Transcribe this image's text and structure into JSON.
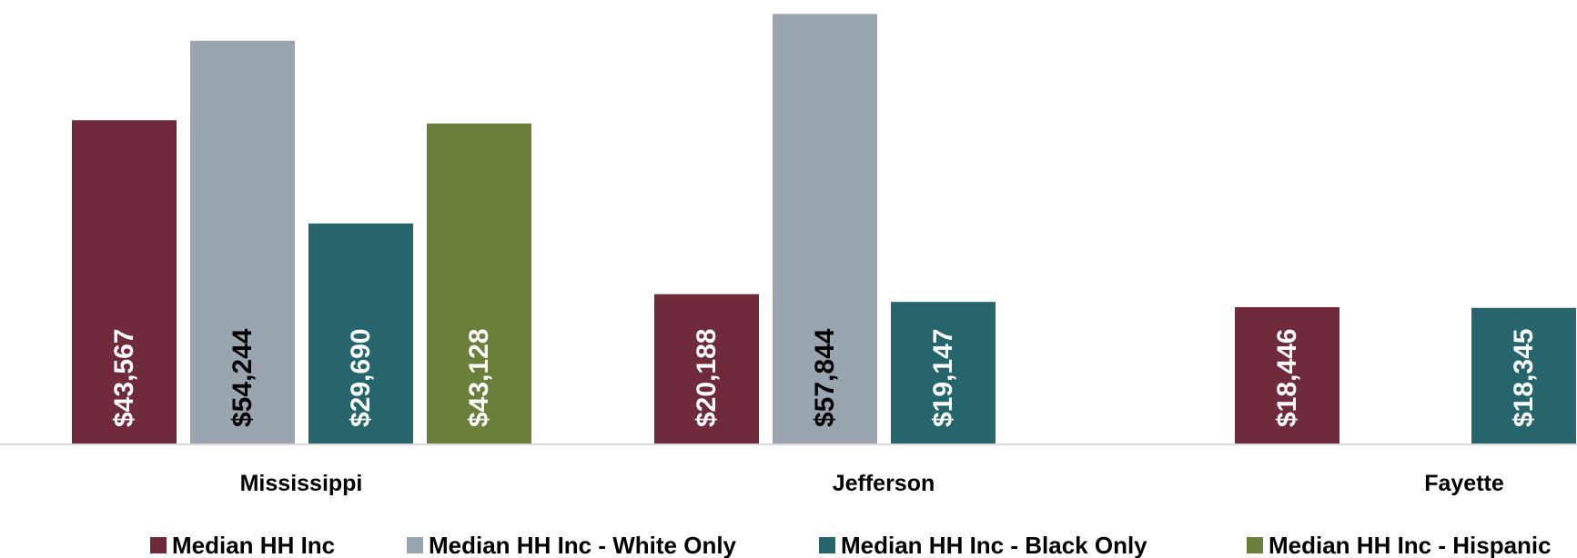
{
  "chart_data": {
    "type": "bar",
    "categories": [
      "Mississippi",
      "Jefferson",
      "Fayette"
    ],
    "series": [
      {
        "name": "Median HH Inc",
        "color": "#6f2a3b",
        "label_color": "#ffffff",
        "values": [
          43567,
          20188,
          18446
        ],
        "labels": [
          "$43,567",
          "$20,188",
          "$18,446"
        ]
      },
      {
        "name": "Median HH Inc - White Only",
        "color": "#9aa5b0",
        "label_color": "#000000",
        "values": [
          54244,
          57844,
          null
        ],
        "labels": [
          "$54,244",
          "$57,844",
          null
        ]
      },
      {
        "name": "Median HH Inc - Black Only",
        "color": "#26656c",
        "label_color": "#ffffff",
        "values": [
          29690,
          19147,
          18345
        ],
        "labels": [
          "$29,690",
          "$19,147",
          "$18,345"
        ]
      },
      {
        "name": "Median HH Inc - Hispanic",
        "color": "#697f3a",
        "label_color": "#ffffff",
        "values": [
          43128,
          null,
          null
        ],
        "labels": [
          "$43,128",
          null,
          null
        ]
      }
    ],
    "ylim": [
      0,
      58500
    ],
    "grid": false,
    "legend_position": "bottom",
    "title": "",
    "xlabel": "",
    "ylabel": ""
  }
}
